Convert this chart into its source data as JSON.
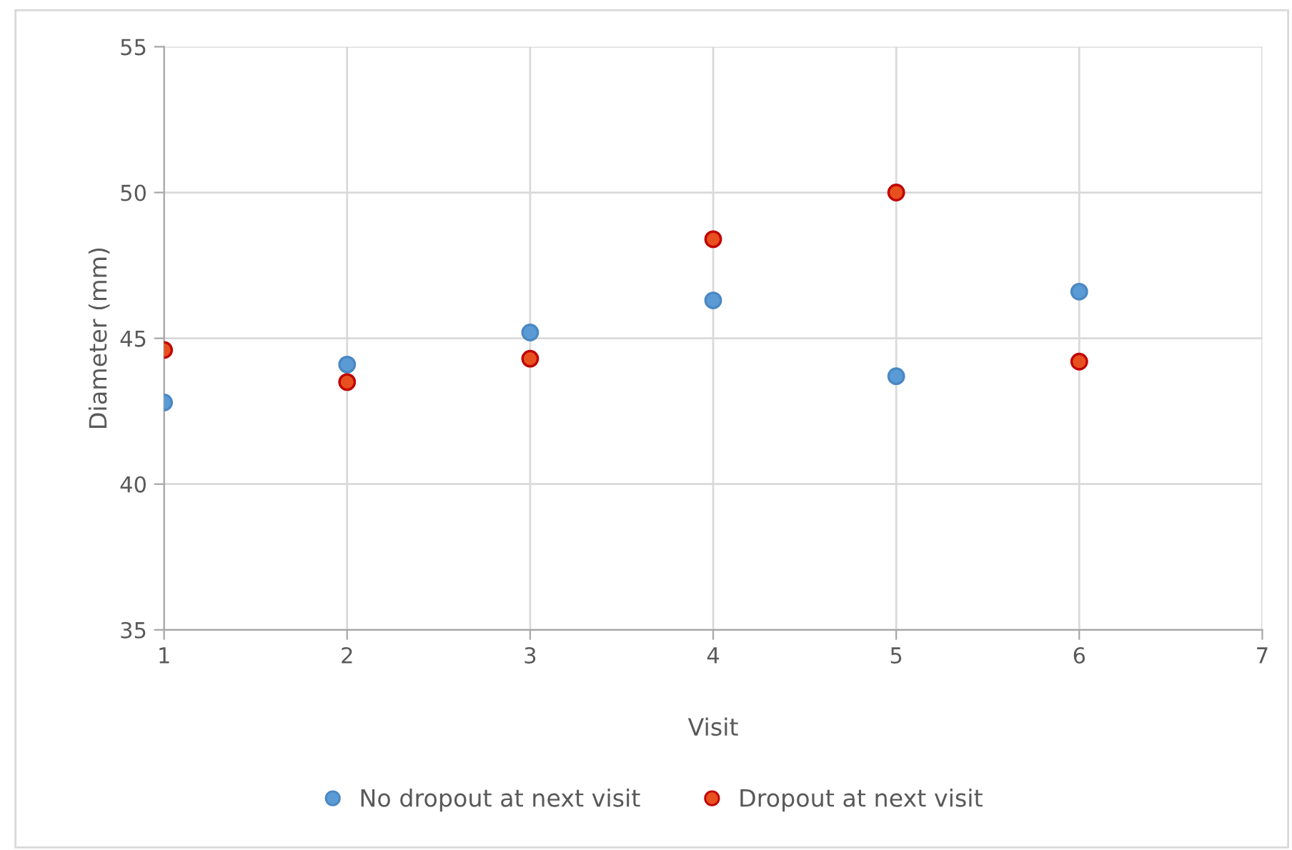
{
  "chart_data": {
    "type": "scatter",
    "xlabel": "Visit",
    "ylabel": "Diameter (mm)",
    "xlim": [
      1,
      7
    ],
    "xticks": [
      1,
      2,
      3,
      4,
      5,
      6,
      7
    ],
    "ylim": [
      35,
      55
    ],
    "yticks": [
      35,
      40,
      45,
      50,
      55
    ],
    "grid": true,
    "legend": "bottom",
    "marker": "circle",
    "series": [
      {
        "name": "No dropout at next visit",
        "color": "#5b9bd5",
        "x": [
          1,
          2,
          3,
          4,
          5,
          6
        ],
        "values": [
          42.8,
          44.1,
          45.2,
          46.3,
          43.7,
          46.6
        ]
      },
      {
        "name": "Dropout at next visit",
        "color": "#e8501f",
        "x": [
          1,
          2,
          3,
          4,
          5,
          6
        ],
        "values": [
          44.6,
          43.5,
          44.3,
          48.4,
          50.0,
          44.2
        ]
      }
    ]
  }
}
